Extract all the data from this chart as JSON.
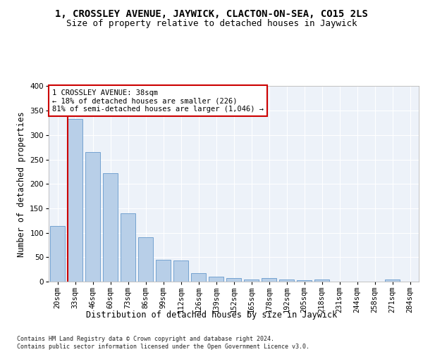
{
  "title": "1, CROSSLEY AVENUE, JAYWICK, CLACTON-ON-SEA, CO15 2LS",
  "subtitle": "Size of property relative to detached houses in Jaywick",
  "xlabel": "Distribution of detached houses by size in Jaywick",
  "ylabel": "Number of detached properties",
  "categories": [
    "20sqm",
    "33sqm",
    "46sqm",
    "60sqm",
    "73sqm",
    "86sqm",
    "99sqm",
    "112sqm",
    "126sqm",
    "139sqm",
    "152sqm",
    "165sqm",
    "178sqm",
    "192sqm",
    "205sqm",
    "218sqm",
    "231sqm",
    "244sqm",
    "258sqm",
    "271sqm",
    "284sqm"
  ],
  "values": [
    114,
    333,
    265,
    222,
    140,
    91,
    45,
    43,
    17,
    10,
    7,
    5,
    7,
    4,
    3,
    4,
    0,
    0,
    0,
    5,
    0
  ],
  "bar_color": "#b8cfe8",
  "bar_edge_color": "#6699cc",
  "highlight_color": "#cc0000",
  "annotation_text": "1 CROSSLEY AVENUE: 38sqm\n← 18% of detached houses are smaller (226)\n81% of semi-detached houses are larger (1,046) →",
  "annotation_box_color": "#cc0000",
  "ylim": [
    0,
    400
  ],
  "yticks": [
    0,
    50,
    100,
    150,
    200,
    250,
    300,
    350,
    400
  ],
  "footer_text": "Contains HM Land Registry data © Crown copyright and database right 2024.\nContains public sector information licensed under the Open Government Licence v3.0.",
  "background_color": "#edf2f9",
  "grid_color": "#ffffff",
  "title_fontsize": 10,
  "subtitle_fontsize": 9,
  "axis_label_fontsize": 8.5,
  "tick_fontsize": 7.5,
  "annotation_fontsize": 7.5,
  "footer_fontsize": 6
}
